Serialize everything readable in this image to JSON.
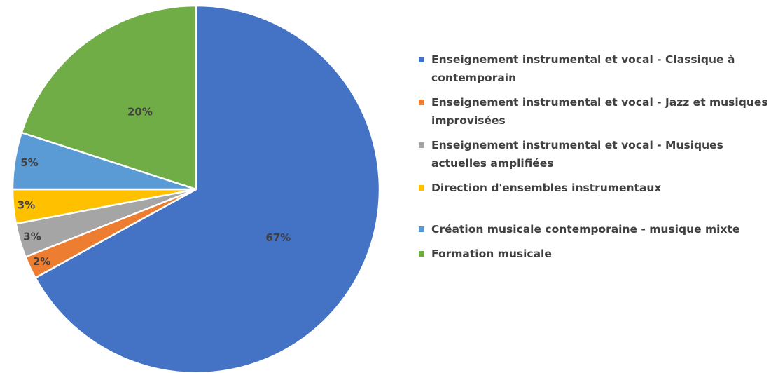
{
  "chart_data": {
    "type": "pie",
    "title": "",
    "legend_position": "right",
    "slices": [
      {
        "name": "Enseignement instrumental et vocal - Classique à contemporain",
        "value": 67,
        "label": "67%",
        "color": "#4472C4"
      },
      {
        "name": "Enseignement instrumental et vocal - Jazz et musiques improvisées",
        "value": 2,
        "label": "2%",
        "color": "#ED7D31"
      },
      {
        "name": "Enseignement instrumental et vocal - Musiques actuelles amplifiées",
        "value": 3,
        "label": "3%",
        "color": "#A5A5A5"
      },
      {
        "name": "Direction d'ensembles instrumentaux",
        "value": 3,
        "label": "3%",
        "color": "#FFC000"
      },
      {
        "name": "Création musicale contemporaine - musique mixte",
        "value": 5,
        "label": "5%",
        "color": "#5B9BD5"
      },
      {
        "name": "Formation musicale",
        "value": 20,
        "label": "20%",
        "color": "#70AD47"
      }
    ]
  }
}
